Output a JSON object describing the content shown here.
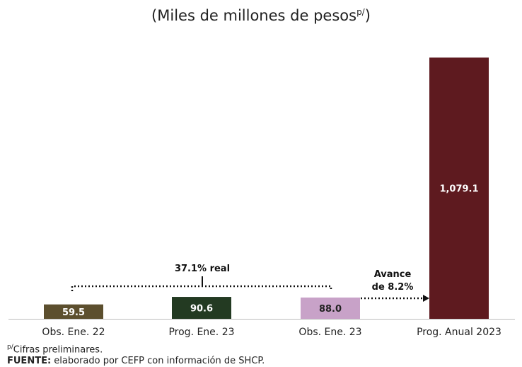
{
  "title_main": "(Miles de millones de pesos",
  "title_sup": "p/",
  "title_close": ")",
  "chart_data": {
    "type": "bar",
    "categories": [
      "Obs. Ene. 22",
      "Prog. Ene. 23",
      "Obs. Ene. 23",
      "Prog. Anual 2023"
    ],
    "values": [
      59.5,
      90.6,
      88.0,
      1079.1
    ],
    "value_labels": [
      "59.5",
      "90.6",
      "88.0",
      "1,079.1"
    ],
    "colors": [
      "#5c4f2e",
      "#233a22",
      "#c8a2c8",
      "#5e1a1f"
    ],
    "label_colors": [
      "#ffffff",
      "#ffffff",
      "#222222",
      "#ffffff"
    ],
    "ylim": [
      0,
      1100
    ],
    "annotations": {
      "real_growth": "37.1% real",
      "progress_line1": "Avance",
      "progress_line2": "de 8.2%"
    }
  },
  "footnote_sup": "p/",
  "footnote_text": "Cifras preliminares.",
  "source_label": "FUENTE:",
  "source_text": " elaborado por CEFP con información de SHCP."
}
